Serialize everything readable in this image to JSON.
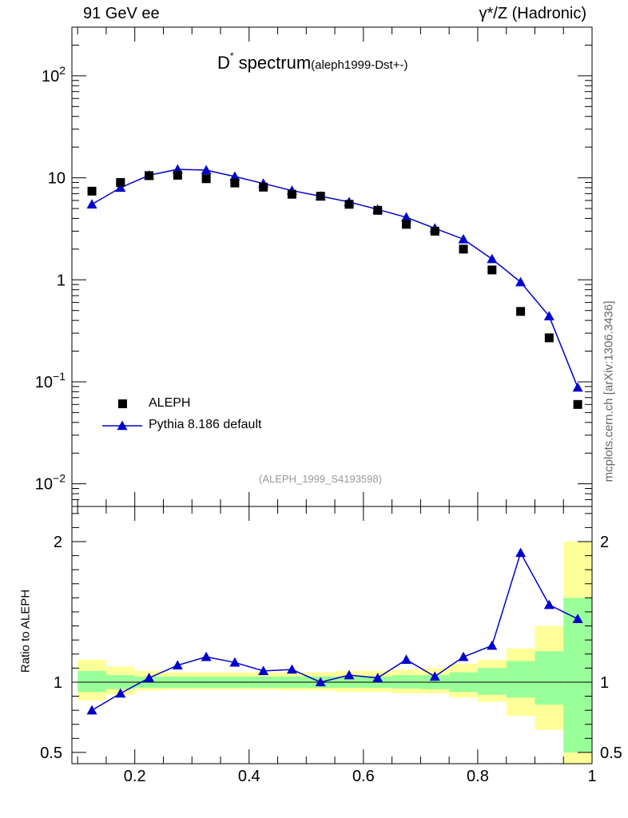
{
  "header": {
    "left": "91 GeV ee",
    "right": "γ*/Z (Hadronic)"
  },
  "title": {
    "main_prefix": "D",
    "main_sup": "*",
    "main_word": " spectrum",
    "analysis": "(aleph1999-Dst+-)"
  },
  "footnote": "(ALEPH_1999_S4193598)",
  "side_reference": "mcplots.cern.ch [arXiv:1306.3436]",
  "colors": {
    "mc": "#0000cc",
    "data": "#000000",
    "band_stat": "#99ff99",
    "band_total": "#ffff99"
  },
  "chart_data": [
    {
      "type": "scatter",
      "title": "D* spectrum",
      "xlim": [
        0.09,
        1.0
      ],
      "ylim": [
        0.006,
        300
      ],
      "log_y": true,
      "y_ticks": [
        "10^-2",
        "10^-1",
        "1",
        "10",
        "10^2"
      ],
      "legend_position": "bottom-left",
      "x": [
        0.125,
        0.175,
        0.225,
        0.275,
        0.325,
        0.375,
        0.425,
        0.475,
        0.525,
        0.575,
        0.625,
        0.675,
        0.725,
        0.775,
        0.825,
        0.875,
        0.925,
        0.975
      ],
      "series": [
        {
          "name": "ALEPH",
          "marker": "square",
          "values": [
            7.4,
            9.0,
            10.5,
            10.6,
            9.8,
            8.9,
            8.1,
            6.9,
            6.6,
            5.5,
            4.8,
            3.5,
            3.0,
            2.0,
            1.25,
            0.49,
            0.27,
            0.06
          ]
        },
        {
          "name": "Pythia 8.186 default",
          "marker": "triangle",
          "values": [
            5.5,
            8.0,
            10.6,
            12.1,
            11.9,
            10.3,
            8.8,
            7.5,
            6.6,
            5.8,
            4.9,
            4.1,
            3.2,
            2.5,
            1.6,
            0.95,
            0.44,
            0.088
          ]
        }
      ]
    },
    {
      "type": "line",
      "ylabel": "Ratio to ALEPH",
      "xlim": [
        0.09,
        1.0
      ],
      "ylim": [
        0.42,
        2.25
      ],
      "x_ticks": [
        "0.2",
        "0.4",
        "0.6",
        "0.8",
        "1"
      ],
      "y_ticks": [
        "0.5",
        "1",
        "2"
      ],
      "x": [
        0.125,
        0.175,
        0.225,
        0.275,
        0.325,
        0.375,
        0.425,
        0.475,
        0.525,
        0.575,
        0.625,
        0.675,
        0.725,
        0.775,
        0.825,
        0.875,
        0.925,
        0.975
      ],
      "bin_edges": [
        0.1,
        0.15,
        0.2,
        0.25,
        0.3,
        0.35,
        0.4,
        0.45,
        0.5,
        0.55,
        0.6,
        0.65,
        0.7,
        0.75,
        0.8,
        0.85,
        0.9,
        0.95,
        1.0
      ],
      "series": [
        {
          "name": "Pythia 8.186 default",
          "values": [
            0.8,
            0.92,
            1.03,
            1.12,
            1.18,
            1.14,
            1.08,
            1.09,
            1.0,
            1.05,
            1.03,
            1.16,
            1.04,
            1.18,
            1.26,
            1.92,
            1.55,
            1.45
          ]
        }
      ],
      "bands": {
        "stat": {
          "low": [
            0.93,
            0.95,
            0.96,
            0.96,
            0.96,
            0.96,
            0.96,
            0.96,
            0.96,
            0.96,
            0.96,
            0.955,
            0.95,
            0.93,
            0.91,
            0.89,
            0.84,
            0.5
          ],
          "high": [
            1.08,
            1.05,
            1.04,
            1.04,
            1.04,
            1.04,
            1.04,
            1.04,
            1.04,
            1.04,
            1.04,
            1.05,
            1.05,
            1.07,
            1.1,
            1.15,
            1.22,
            1.6
          ]
        },
        "total": {
          "low": [
            0.87,
            0.91,
            0.94,
            0.945,
            0.945,
            0.945,
            0.945,
            0.94,
            0.94,
            0.93,
            0.93,
            0.92,
            0.92,
            0.89,
            0.86,
            0.76,
            0.66,
            0.42
          ],
          "high": [
            1.16,
            1.11,
            1.08,
            1.07,
            1.07,
            1.07,
            1.07,
            1.07,
            1.07,
            1.08,
            1.08,
            1.09,
            1.1,
            1.13,
            1.16,
            1.24,
            1.4,
            2.0
          ]
        }
      }
    }
  ]
}
